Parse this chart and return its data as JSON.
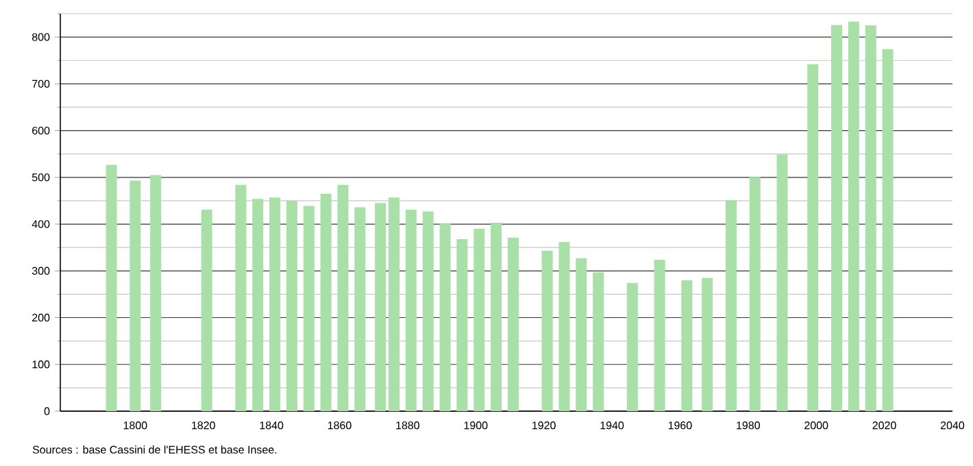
{
  "chart_data": {
    "type": "bar",
    "x": [
      1793,
      1800,
      1806,
      1821,
      1831,
      1836,
      1841,
      1846,
      1851,
      1856,
      1861,
      1866,
      1872,
      1876,
      1881,
      1886,
      1891,
      1896,
      1901,
      1906,
      1911,
      1921,
      1926,
      1931,
      1936,
      1946,
      1954,
      1962,
      1968,
      1975,
      1982,
      1990,
      1999,
      2006,
      2011,
      2016,
      2021
    ],
    "values": [
      527,
      493,
      505,
      431,
      484,
      454,
      457,
      450,
      439,
      465,
      484,
      436,
      445,
      457,
      431,
      427,
      401,
      368,
      390,
      403,
      371,
      343,
      362,
      327,
      297,
      274,
      324,
      280,
      285,
      451,
      501,
      549,
      742,
      826,
      833,
      825,
      774
    ],
    "color": "#a8e0a8",
    "xlim": [
      1778,
      2040
    ],
    "xticks": [
      1800,
      1820,
      1840,
      1860,
      1880,
      1900,
      1920,
      1940,
      1960,
      1980,
      2000,
      2020,
      2040
    ],
    "ylim": [
      0,
      850
    ],
    "yticks": [
      0,
      {
        "value": 50,
        "label": null
      },
      100,
      {
        "value": 150,
        "label": null
      },
      200,
      {
        "value": 250,
        "label": null
      },
      300,
      {
        "value": 350,
        "label": null
      },
      400,
      {
        "value": 450,
        "label": null
      },
      500,
      {
        "value": 550,
        "label": null
      },
      600,
      {
        "value": 650,
        "label": null
      },
      700,
      {
        "value": 750,
        "label": null
      },
      800,
      {
        "value": 850,
        "label": null
      }
    ],
    "grid": "y",
    "annotations": [
      "Sources : base Cassini de l'EHESS et base Insee."
    ]
  }
}
